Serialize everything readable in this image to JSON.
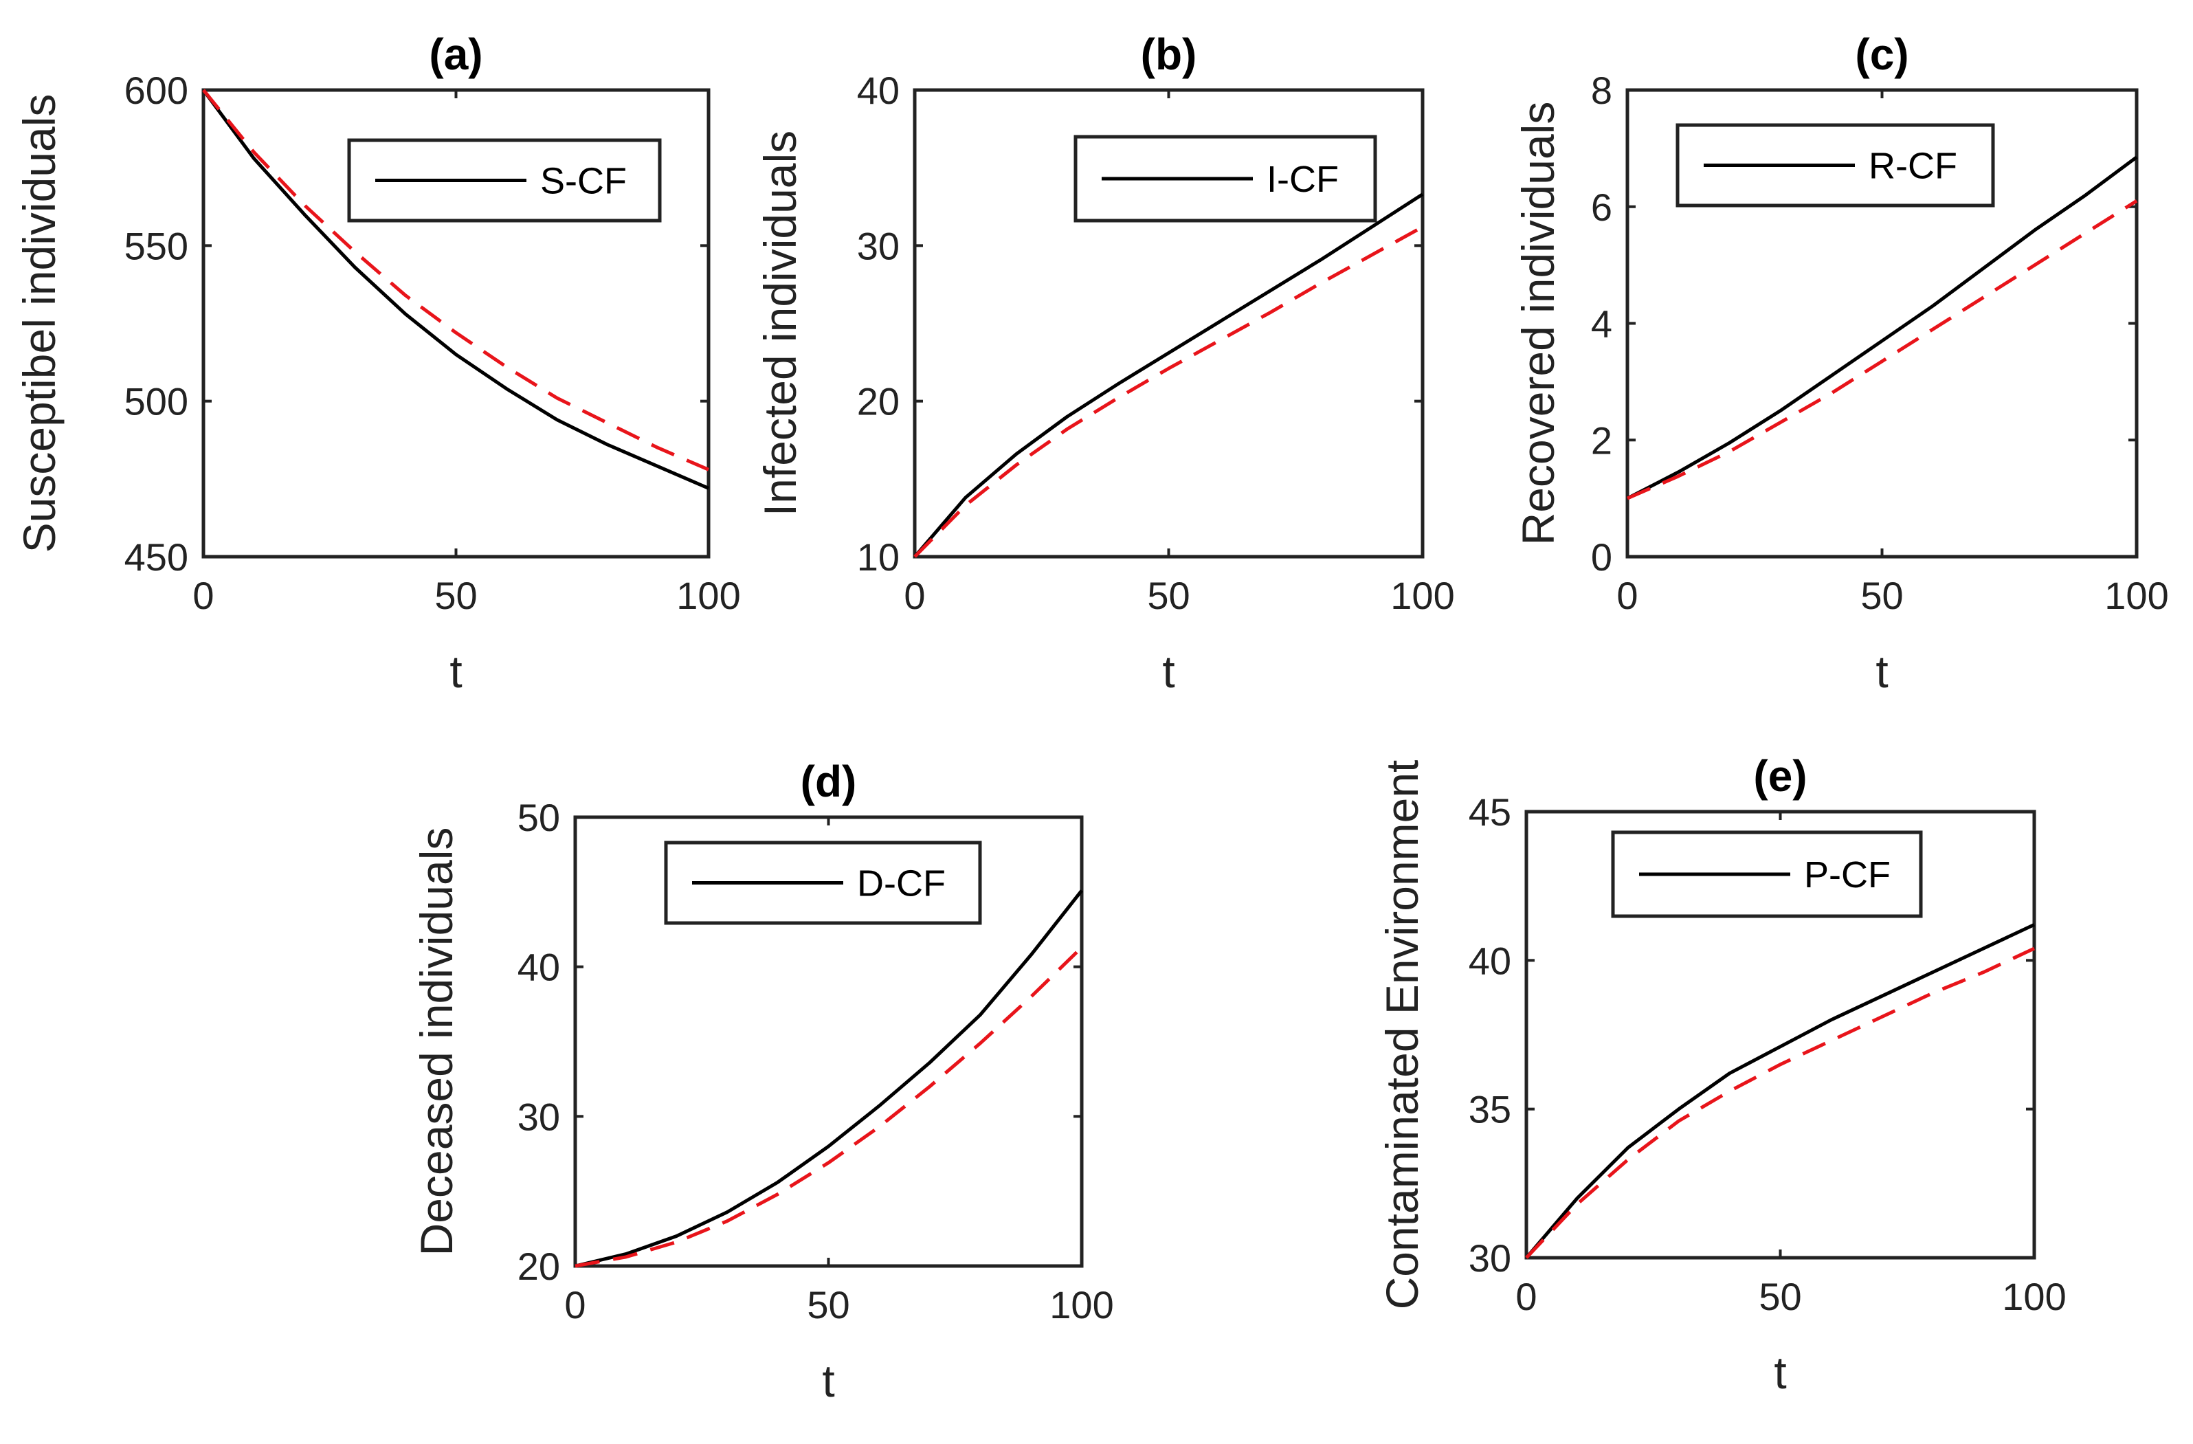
{
  "chart_data": [
    {
      "type": "line",
      "title": "(a)",
      "xlabel": "t",
      "ylabel": "Susceptibel individuals",
      "xlim": [
        0,
        100
      ],
      "ylim": [
        450,
        600
      ],
      "xticks": [
        0,
        50,
        100
      ],
      "yticks": [
        450,
        500,
        550,
        600
      ],
      "legend": "S-CF",
      "legend_position": "top-right",
      "x": [
        0,
        10,
        20,
        30,
        40,
        50,
        60,
        70,
        80,
        90,
        100
      ],
      "series": [
        {
          "name": "S-CF",
          "style": "solid",
          "color": "#000000",
          "values": [
            600,
            578,
            560,
            543,
            528,
            515,
            504,
            494,
            486,
            479,
            472
          ]
        },
        {
          "name": "",
          "style": "dashed",
          "color": "#e8141a",
          "values": [
            600,
            580,
            563,
            548,
            534,
            522,
            511,
            501,
            493,
            485,
            478
          ]
        }
      ]
    },
    {
      "type": "line",
      "title": "(b)",
      "xlabel": "t",
      "ylabel": "Infected individuals",
      "xlim": [
        0,
        100
      ],
      "ylim": [
        10,
        40
      ],
      "xticks": [
        0,
        50,
        100
      ],
      "yticks": [
        10,
        20,
        30,
        40
      ],
      "legend": "I-CF",
      "legend_position": "top-right",
      "x": [
        0,
        10,
        20,
        30,
        40,
        50,
        60,
        70,
        80,
        90,
        100
      ],
      "series": [
        {
          "name": "I-CF",
          "style": "solid",
          "color": "#000000",
          "values": [
            10,
            13.8,
            16.6,
            19.0,
            21.1,
            23.1,
            25.1,
            27.1,
            29.1,
            31.2,
            33.3
          ]
        },
        {
          "name": "",
          "style": "dashed",
          "color": "#e8141a",
          "values": [
            10,
            13.3,
            15.9,
            18.2,
            20.2,
            22.1,
            23.9,
            25.7,
            27.6,
            29.4,
            31.2
          ]
        }
      ]
    },
    {
      "type": "line",
      "title": "(c)",
      "xlabel": "t",
      "ylabel": "Recovered individuals",
      "xlim": [
        0,
        100
      ],
      "ylim": [
        0,
        8
      ],
      "xticks": [
        0,
        50,
        100
      ],
      "yticks": [
        0,
        2,
        4,
        6,
        8
      ],
      "legend": "R-CF",
      "legend_position": "top-right",
      "x": [
        0,
        10,
        20,
        30,
        40,
        50,
        60,
        70,
        80,
        90,
        100
      ],
      "series": [
        {
          "name": "R-CF",
          "style": "solid",
          "color": "#000000",
          "values": [
            1.0,
            1.45,
            1.95,
            2.5,
            3.1,
            3.7,
            4.3,
            4.95,
            5.6,
            6.2,
            6.85
          ]
        },
        {
          "name": "",
          "style": "dashed",
          "color": "#e8141a",
          "values": [
            1.0,
            1.38,
            1.8,
            2.3,
            2.8,
            3.35,
            3.9,
            4.45,
            5.0,
            5.55,
            6.1
          ]
        }
      ]
    },
    {
      "type": "line",
      "title": "(d)",
      "xlabel": "t",
      "ylabel": "Deceased individuals",
      "xlim": [
        0,
        100
      ],
      "ylim": [
        20,
        50
      ],
      "xticks": [
        0,
        50,
        100
      ],
      "yticks": [
        20,
        30,
        40,
        50
      ],
      "legend": "D-CF",
      "legend_position": "top-right",
      "x": [
        0,
        10,
        20,
        30,
        40,
        50,
        60,
        70,
        80,
        90,
        100
      ],
      "series": [
        {
          "name": "D-CF",
          "style": "solid",
          "color": "#000000",
          "values": [
            20,
            20.8,
            22.0,
            23.6,
            25.6,
            28.0,
            30.7,
            33.6,
            36.8,
            40.8,
            45.1
          ]
        },
        {
          "name": "",
          "style": "dashed",
          "color": "#e8141a",
          "values": [
            20,
            20.6,
            21.6,
            23.0,
            24.8,
            26.9,
            29.3,
            32.0,
            34.9,
            38.0,
            41.3
          ]
        }
      ]
    },
    {
      "type": "line",
      "title": "(e)",
      "xlabel": "t",
      "ylabel": "Contaminated Environment",
      "xlim": [
        0,
        100
      ],
      "ylim": [
        30,
        45
      ],
      "xticks": [
        0,
        50,
        100
      ],
      "yticks": [
        30,
        35,
        40,
        45
      ],
      "legend": "P-CF",
      "legend_position": "top-right",
      "x": [
        0,
        10,
        20,
        30,
        40,
        50,
        60,
        70,
        80,
        90,
        100
      ],
      "series": [
        {
          "name": "P-CF",
          "style": "solid",
          "color": "#000000",
          "values": [
            30,
            32.0,
            33.7,
            35.0,
            36.2,
            37.1,
            38.0,
            38.8,
            39.6,
            40.4,
            41.2
          ]
        },
        {
          "name": "",
          "style": "dashed",
          "color": "#e8141a",
          "values": [
            30,
            31.8,
            33.3,
            34.6,
            35.6,
            36.5,
            37.3,
            38.1,
            38.9,
            39.6,
            40.4
          ]
        }
      ]
    }
  ]
}
